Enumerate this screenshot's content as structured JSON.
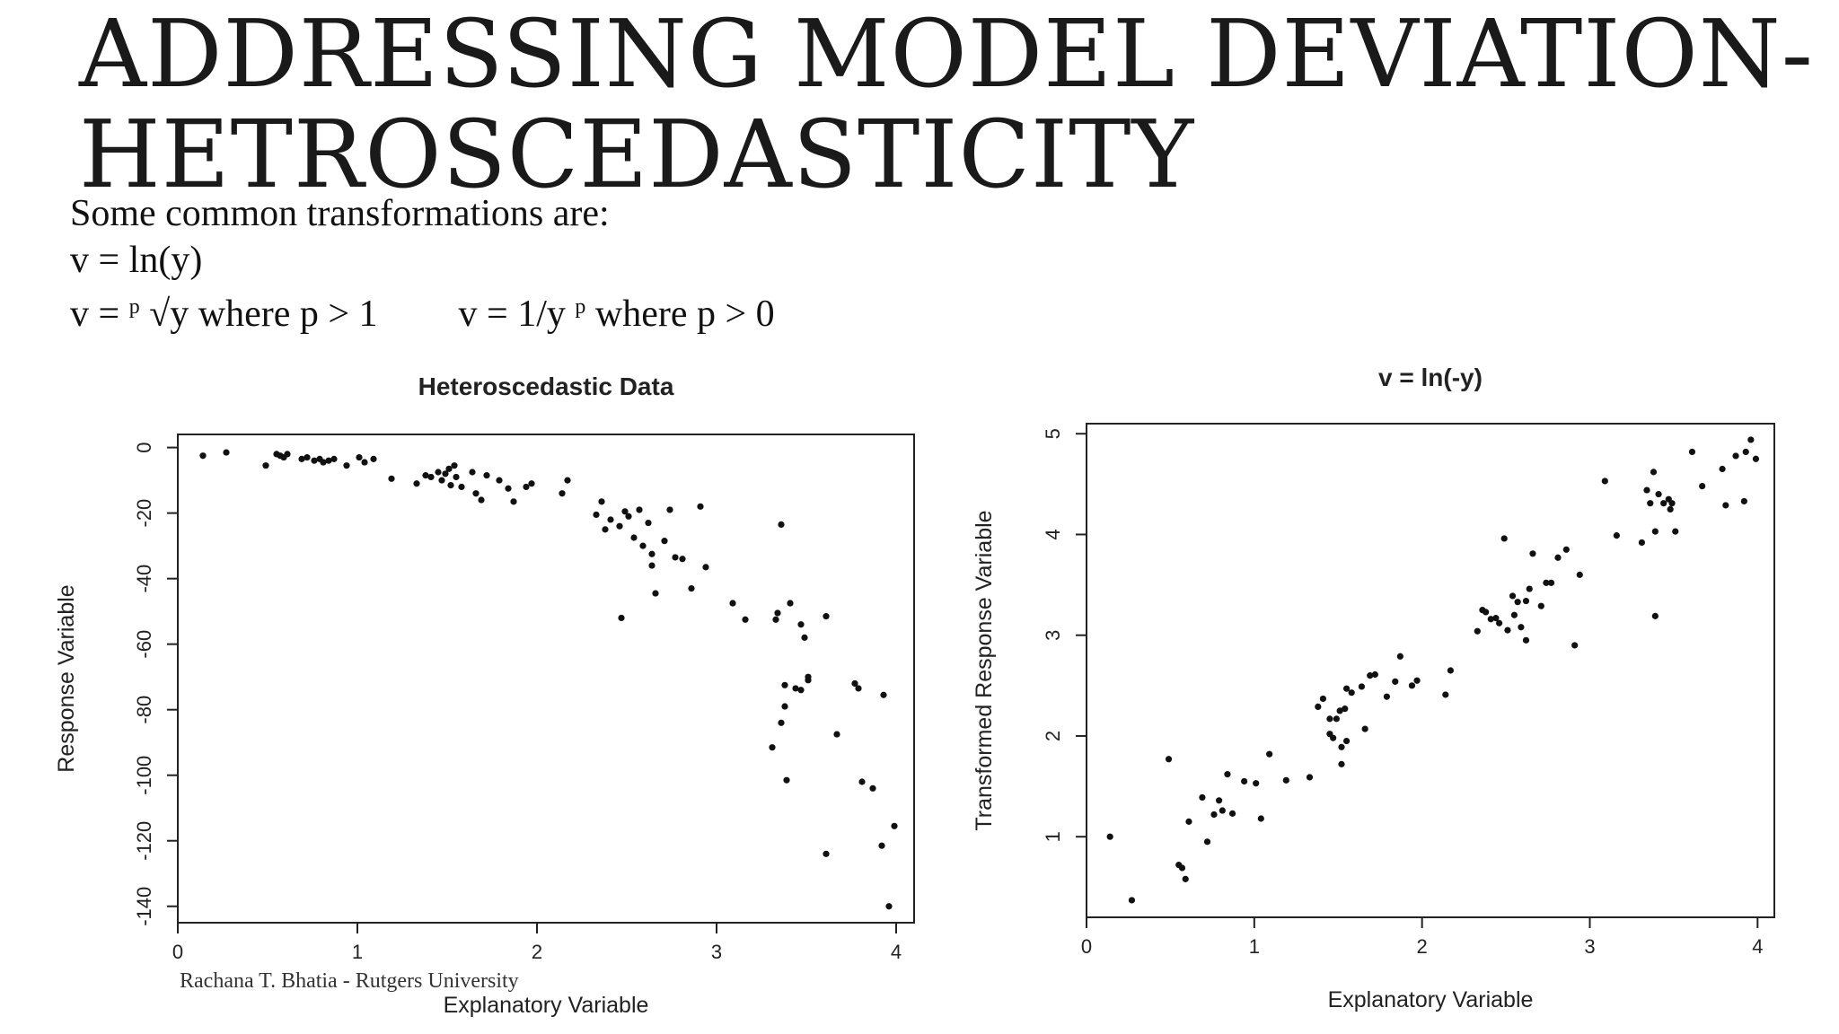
{
  "slide": {
    "title_line1": "ADDRESSING MODEL DEVIATION-",
    "title_line2": "HETROSCEDASTICITY",
    "intro": "Some common transformations are:",
    "t1": "v = ln(y)",
    "t2_pre": "v = ",
    "t2_sup": "p",
    "t2_post": " √y where p > 1",
    "t3_pre": "v = 1/y ",
    "t3_sup": "p",
    "t3_post": " where p > 0",
    "footer": "Rachana T. Bhatia - Rutgers University"
  },
  "chart_data": [
    {
      "type": "scatter",
      "title": "Heteroscedastic Data",
      "xlabel": "Explanatory Variable",
      "ylabel": "Response Variable",
      "xlim": [
        0,
        4.1
      ],
      "ylim": [
        -145,
        4
      ],
      "xticks": [
        0,
        1,
        2,
        3,
        4
      ],
      "yticks": [
        0,
        -20,
        -40,
        -60,
        -80,
        -100,
        -120,
        -140
      ],
      "x": [
        0.14,
        0.27,
        0.49,
        0.55,
        0.57,
        0.59,
        0.61,
        0.69,
        0.72,
        0.76,
        0.79,
        0.81,
        0.84,
        0.87,
        0.94,
        1.01,
        1.04,
        1.09,
        1.19,
        1.33,
        1.38,
        1.41,
        1.45,
        1.47,
        1.49,
        1.51,
        1.52,
        1.54,
        1.55,
        1.58,
        1.64,
        1.66,
        1.69,
        1.72,
        1.79,
        1.84,
        1.87,
        1.94,
        1.97,
        2.14,
        2.17,
        2.33,
        2.36,
        2.38,
        2.41,
        2.46,
        2.49,
        2.51,
        2.54,
        2.57,
        2.59,
        2.62,
        2.64,
        2.66,
        2.71,
        2.74,
        2.77,
        2.81,
        2.86,
        2.91,
        2.94,
        3.09,
        3.16,
        3.31,
        3.34,
        3.36,
        3.38,
        3.39,
        3.41,
        3.44,
        3.47,
        3.49,
        3.51,
        3.61,
        3.67,
        3.79,
        3.81,
        3.87,
        3.92,
        3.96,
        3.61,
        3.36,
        3.33,
        3.38,
        2.47,
        2.64,
        3.77
      ],
      "y": [
        -2.5,
        -1.5,
        -5.5,
        -2.0,
        -2.5,
        -3.0,
        -2.0,
        -3.5,
        -3.0,
        -4.0,
        -3.5,
        -4.5,
        -4.0,
        -3.5,
        -5.5,
        -3.0,
        -4.5,
        -3.5,
        -9.5,
        -11.0,
        -8.5,
        -9.0,
        -7.5,
        -10.0,
        -8.0,
        -6.5,
        -11.5,
        -5.5,
        -9.0,
        -12.0,
        -7.5,
        -14.0,
        -16.0,
        -8.5,
        -10.0,
        -12.5,
        -16.5,
        -12.0,
        -11.0,
        -14.0,
        -10.0,
        -20.5,
        -16.5,
        -25.0,
        -22.0,
        -24.0,
        -19.5,
        -21.0,
        -27.5,
        -19.0,
        -30.0,
        -23.0,
        -32.5,
        -44.5,
        -28.5,
        -19.0,
        -33.5,
        -34.0,
        -43.0,
        -18.0,
        -36.5,
        -47.5,
        -52.5,
        -91.5,
        -50.5,
        -84.0,
        -72.5,
        -101.5,
        -47.5,
        -73.5,
        -54.0,
        -58.0,
        -71.0,
        -51.5,
        -87.5,
        -73.5,
        -102.0,
        -104.0,
        -121.5,
        -140.0,
        -124.0,
        -23.5,
        -52.5,
        -79.0,
        -52.0,
        -36.0,
        -72.0
      ],
      "x_extra_note": "",
      "x2": [
        3.99,
        3.93,
        3.51,
        3.47
      ],
      "y2": [
        -115.5,
        -75.5,
        -70.0,
        -74.0
      ]
    },
    {
      "type": "scatter",
      "title": "v = ln(-y)",
      "xlabel": "Explanatory Variable",
      "ylabel": "Transformed Response Variable",
      "xlim": [
        0,
        4.1
      ],
      "ylim": [
        0.2,
        5.1
      ],
      "xticks": [
        0,
        1,
        2,
        3,
        4
      ],
      "yticks": [
        1,
        2,
        3,
        4,
        5
      ],
      "x": [
        0.14,
        0.27,
        0.49,
        0.55,
        0.57,
        0.59,
        0.61,
        0.69,
        0.72,
        0.76,
        0.79,
        0.81,
        0.84,
        0.87,
        0.94,
        1.01,
        1.04,
        1.09,
        1.19,
        1.33,
        1.38,
        1.41,
        1.45,
        1.47,
        1.49,
        1.51,
        1.52,
        1.54,
        1.55,
        1.58,
        1.64,
        1.66,
        1.69,
        1.72,
        1.79,
        1.84,
        1.87,
        1.94,
        1.97,
        2.14,
        2.17,
        2.33,
        2.36,
        2.38,
        2.41,
        2.46,
        2.49,
        2.51,
        2.54,
        2.57,
        2.59,
        2.62,
        2.64,
        2.66,
        2.71,
        2.74,
        2.77,
        2.81,
        2.86,
        2.91,
        2.94,
        3.09,
        3.16,
        3.31,
        3.34,
        3.36,
        3.38,
        3.39,
        3.41,
        3.44,
        3.47,
        3.49,
        3.51,
        3.61,
        3.67,
        3.79,
        3.81,
        3.87,
        3.92,
        3.96,
        2.55,
        2.62,
        1.52,
        1.55,
        1.45,
        2.44
      ],
      "y": [
        1.0,
        0.37,
        1.77,
        0.72,
        0.69,
        0.58,
        1.15,
        1.39,
        0.95,
        1.22,
        1.36,
        1.26,
        1.62,
        1.23,
        1.55,
        1.53,
        1.18,
        1.82,
        1.56,
        1.59,
        2.29,
        2.37,
        2.17,
        1.98,
        2.17,
        2.25,
        1.89,
        2.27,
        2.47,
        2.43,
        2.49,
        2.07,
        2.6,
        2.61,
        2.39,
        2.54,
        2.79,
        2.5,
        2.55,
        2.41,
        2.65,
        3.04,
        3.25,
        3.23,
        3.16,
        3.12,
        3.96,
        3.05,
        3.39,
        3.33,
        3.08,
        3.34,
        3.46,
        3.81,
        3.29,
        3.52,
        3.52,
        3.77,
        3.85,
        2.9,
        3.6,
        4.53,
        3.99,
        3.92,
        4.44,
        4.31,
        4.62,
        4.03,
        4.4,
        4.31,
        4.35,
        4.31,
        4.03,
        4.82,
        4.48,
        4.65,
        4.29,
        4.78,
        4.33,
        4.94,
        3.2,
        2.95,
        1.72,
        1.95,
        2.02,
        3.17
      ],
      "x2": [
        3.39,
        3.99,
        3.93,
        3.48
      ],
      "y2": [
        3.19,
        4.75,
        4.82,
        4.25
      ]
    }
  ]
}
